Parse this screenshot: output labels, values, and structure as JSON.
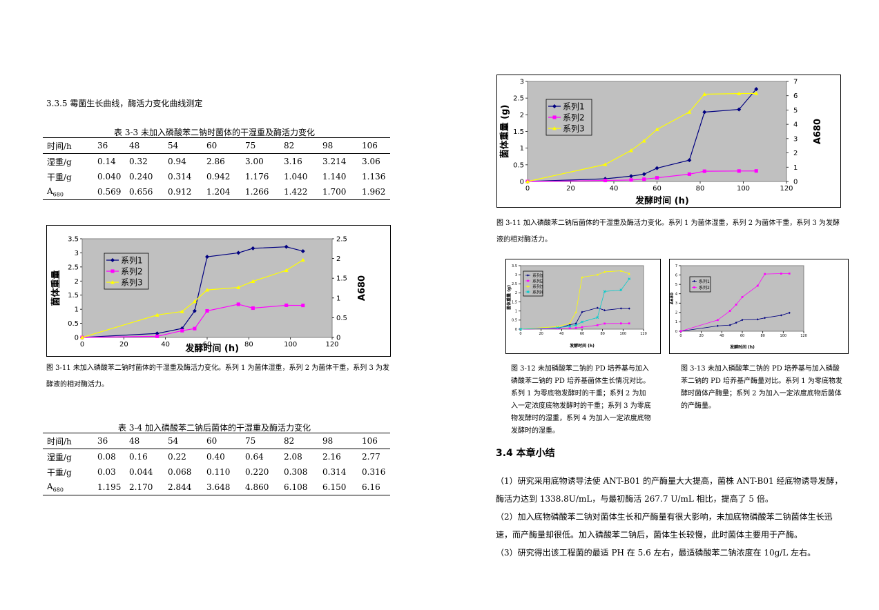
{
  "left": {
    "heading": "3.3.5 霉菌生长曲线，酶活力变化曲线测定",
    "table1": {
      "caption": "表 3-3   未加入磷酸苯二钠时菌体的干湿重及酶活力变化",
      "header": [
        "时间/h",
        "36",
        "48",
        "54",
        "60",
        "75",
        "82",
        "98",
        "106"
      ],
      "rows": [
        [
          "湿重/g",
          "0.14",
          "0.32",
          "0.94",
          "2.86",
          "3.00",
          "3.16",
          "3.214",
          "3.06"
        ],
        [
          "干重/g",
          "0.040",
          "0.240",
          "0.314",
          "0.942",
          "1.176",
          "1.040",
          "1.140",
          "1.136"
        ],
        [
          "A680",
          "0.569",
          "0.656",
          "0.912",
          "1.204",
          "1.266",
          "1.422",
          "1.700",
          "1.962"
        ]
      ]
    },
    "fig1_caption": "图 3-11   未加入磷酸苯二钠时菌体的干湿重及酶活力变化。系列 1 为菌体湿重，系列 2 为菌体干重，系列 3 为发酵液的相对酶活力。",
    "table2": {
      "caption": "表 3-4   加入磷酸苯二钠后菌体的干湿重及酶活力变化",
      "header": [
        "时间/h",
        "36",
        "48",
        "54",
        "60",
        "75",
        "82",
        "98",
        "106"
      ],
      "rows": [
        [
          "湿重/g",
          "0.08",
          "0.16",
          "0.22",
          "0.40",
          "0.64",
          "2.08",
          "2.16",
          "2.77"
        ],
        [
          "干重/g",
          "0.03",
          "0.044",
          "0.068",
          "0.110",
          "0.220",
          "0.308",
          "0.314",
          "0.316"
        ],
        [
          "A680",
          "1.195",
          "2.170",
          "2.844",
          "3.648",
          "4.860",
          "6.108",
          "6.150",
          "6.16"
        ]
      ]
    }
  },
  "right": {
    "fig2_caption": "图 3-11   加入磷酸苯二钠后菌体的干湿重及酶活力变化。系列 1 为菌体湿重，系列 2 为菌体干重，系列 3 为发酵液的相对酶活力。",
    "fig3_caption": "图 3-12   未加磷酸苯二钠的 PD 培养基与加入磷酸苯二钠的 PD 培养基菌体生长情况对比。系列 1 为零底物发酵时的干重；系列 2 为加入一定浓度底物发酵时的干重；系列 3 为零底物发酵时的湿重，系列 4 为加入一定浓度底物发酵时的湿重。",
    "fig4_caption": "图 3-13   未加入磷酸苯二钠的 PD 培养基与加入磷酸苯二钠的 PD 培养基产酶量对比。系列 1 为零底物发酵时菌体产酶量；系列 2 为加入一定浓度底物后菌体的产酶量。",
    "section_title": "3.4 本章小结",
    "paragraphs": [
      "（1）研究采用底物诱导法使 ANT-B01 的产酶量大大提高，菌株 ANT-B01 经底物诱导发酵，酶活力达到 1338.8U/mL，与最初酶活 267.7 U/mL 相比，提高了 5 倍。",
      "（2）加入底物磷酸苯二钠对菌体生长和产酶量有很大影响，未加底物磷酸苯二钠菌体生长迅速，而产酶量却很低。加入磷酸苯二钠后，菌体生长较慢，此时菌体主要用于产酶。",
      "（3）研究得出该工程菌的最适 PH 在 5.6 左右，最适磷酸苯二钠浓度在 10g/L 左右。"
    ]
  },
  "chart_data": [
    {
      "type": "line",
      "xlabel": "发酵时间 (h)",
      "ylabel": "菌体重量",
      "y2label": "A680",
      "xlim": [
        0,
        120
      ],
      "xticks": [
        0,
        20,
        40,
        60,
        80,
        100,
        120
      ],
      "ylim": [
        0,
        3.5
      ],
      "yticks": [
        0,
        0.5,
        1,
        1.5,
        2,
        2.5,
        3,
        3.5
      ],
      "y2lim": [
        0,
        2.5
      ],
      "y2ticks": [
        0,
        0.5,
        1,
        1.5,
        2,
        2.5
      ],
      "legend_position": "top-left",
      "series": [
        {
          "name": "系列1",
          "color": "#000080",
          "marker": "diamond",
          "axis": "left",
          "x": [
            0,
            36,
            48,
            54,
            60,
            75,
            82,
            98,
            106
          ],
          "y": [
            0,
            0.14,
            0.32,
            0.94,
            2.86,
            3.0,
            3.16,
            3.214,
            3.06
          ]
        },
        {
          "name": "系列2",
          "color": "#ff00ff",
          "marker": "square",
          "axis": "left",
          "x": [
            0,
            36,
            48,
            54,
            60,
            75,
            82,
            98,
            106
          ],
          "y": [
            0,
            0.04,
            0.24,
            0.314,
            0.942,
            1.176,
            1.04,
            1.14,
            1.136
          ]
        },
        {
          "name": "系列3",
          "color": "#ffff00",
          "marker": "triangle",
          "axis": "right",
          "x": [
            0,
            36,
            48,
            54,
            60,
            75,
            82,
            98,
            106
          ],
          "y": [
            0,
            0.569,
            0.656,
            0.912,
            1.204,
            1.266,
            1.422,
            1.7,
            1.962
          ]
        }
      ]
    },
    {
      "type": "line",
      "xlabel": "发酵时间 (h)",
      "ylabel": "菌体重量 (g)",
      "y2label": "A680",
      "xlim": [
        0,
        120
      ],
      "xticks": [
        0,
        20,
        40,
        60,
        80,
        100,
        120
      ],
      "ylim": [
        0,
        3
      ],
      "yticks": [
        0,
        0.5,
        1,
        1.5,
        2,
        2.5,
        3
      ],
      "y2lim": [
        0,
        7
      ],
      "y2ticks": [
        0,
        1,
        2,
        3,
        4,
        5,
        6,
        7
      ],
      "legend_position": "top-left",
      "series": [
        {
          "name": "系列1",
          "color": "#000080",
          "marker": "diamond",
          "axis": "left",
          "x": [
            0,
            36,
            48,
            54,
            60,
            75,
            82,
            98,
            106
          ],
          "y": [
            0,
            0.08,
            0.16,
            0.22,
            0.4,
            0.64,
            2.08,
            2.16,
            2.77
          ]
        },
        {
          "name": "系列2",
          "color": "#ff00ff",
          "marker": "square",
          "axis": "left",
          "x": [
            0,
            36,
            48,
            54,
            60,
            75,
            82,
            98,
            106
          ],
          "y": [
            0,
            0.03,
            0.044,
            0.068,
            0.11,
            0.22,
            0.308,
            0.314,
            0.316
          ]
        },
        {
          "name": "系列3",
          "color": "#ffff00",
          "marker": "triangle",
          "axis": "right",
          "x": [
            0,
            36,
            48,
            54,
            60,
            75,
            82,
            98,
            106
          ],
          "y": [
            0,
            1.195,
            2.17,
            2.844,
            3.648,
            4.86,
            6.108,
            6.15,
            6.16
          ]
        }
      ]
    },
    {
      "type": "line",
      "xlabel": "发酵时间 (h)",
      "ylabel": "菌体重量 (g)",
      "xlim": [
        0,
        120
      ],
      "xticks": [
        0,
        20,
        40,
        60,
        80,
        100,
        120
      ],
      "ylim": [
        0,
        3.5
      ],
      "yticks": [
        0,
        0.5,
        1,
        1.5,
        2,
        2.5,
        3,
        3.5
      ],
      "legend_position": "top-left",
      "series": [
        {
          "name": "系列1",
          "color": "#000080",
          "marker": "diamond",
          "x": [
            0,
            36,
            48,
            54,
            60,
            75,
            82,
            98,
            106
          ],
          "y": [
            0,
            0.04,
            0.24,
            0.314,
            0.942,
            1.176,
            1.04,
            1.14,
            1.136
          ]
        },
        {
          "name": "系列2",
          "color": "#ff00ff",
          "marker": "square",
          "x": [
            0,
            36,
            48,
            54,
            60,
            75,
            82,
            98,
            106
          ],
          "y": [
            0,
            0.03,
            0.044,
            0.068,
            0.11,
            0.22,
            0.308,
            0.314,
            0.316
          ]
        },
        {
          "name": "系列3",
          "color": "#ffff00",
          "marker": "triangle",
          "x": [
            0,
            36,
            48,
            54,
            60,
            75,
            82,
            98,
            106
          ],
          "y": [
            0,
            0.14,
            0.32,
            0.94,
            2.86,
            3.0,
            3.16,
            3.214,
            3.06
          ]
        },
        {
          "name": "系列4",
          "color": "#00cccc",
          "marker": "x",
          "x": [
            0,
            36,
            48,
            54,
            60,
            75,
            82,
            98,
            106
          ],
          "y": [
            0,
            0.08,
            0.16,
            0.22,
            0.4,
            0.64,
            2.08,
            2.16,
            2.77
          ]
        }
      ]
    },
    {
      "type": "line",
      "xlabel": "发酵时间 (h)",
      "ylabel": "A680",
      "xlim": [
        0,
        120
      ],
      "xticks": [
        0,
        20,
        40,
        60,
        80,
        100,
        120
      ],
      "ylim": [
        0,
        7
      ],
      "yticks": [
        0,
        1,
        2,
        3,
        4,
        5,
        6,
        7
      ],
      "legend_position": "top-left",
      "series": [
        {
          "name": "系列1",
          "color": "#000080",
          "marker": "diamond",
          "x": [
            0,
            36,
            48,
            54,
            60,
            75,
            82,
            98,
            106
          ],
          "y": [
            0,
            0.569,
            0.656,
            0.912,
            1.204,
            1.266,
            1.422,
            1.7,
            1.962
          ]
        },
        {
          "name": "系列2",
          "color": "#ff00ff",
          "marker": "square",
          "x": [
            0,
            36,
            48,
            54,
            60,
            75,
            82,
            98,
            106
          ],
          "y": [
            0,
            1.195,
            2.17,
            2.844,
            3.648,
            4.86,
            6.108,
            6.15,
            6.16
          ]
        }
      ]
    }
  ]
}
